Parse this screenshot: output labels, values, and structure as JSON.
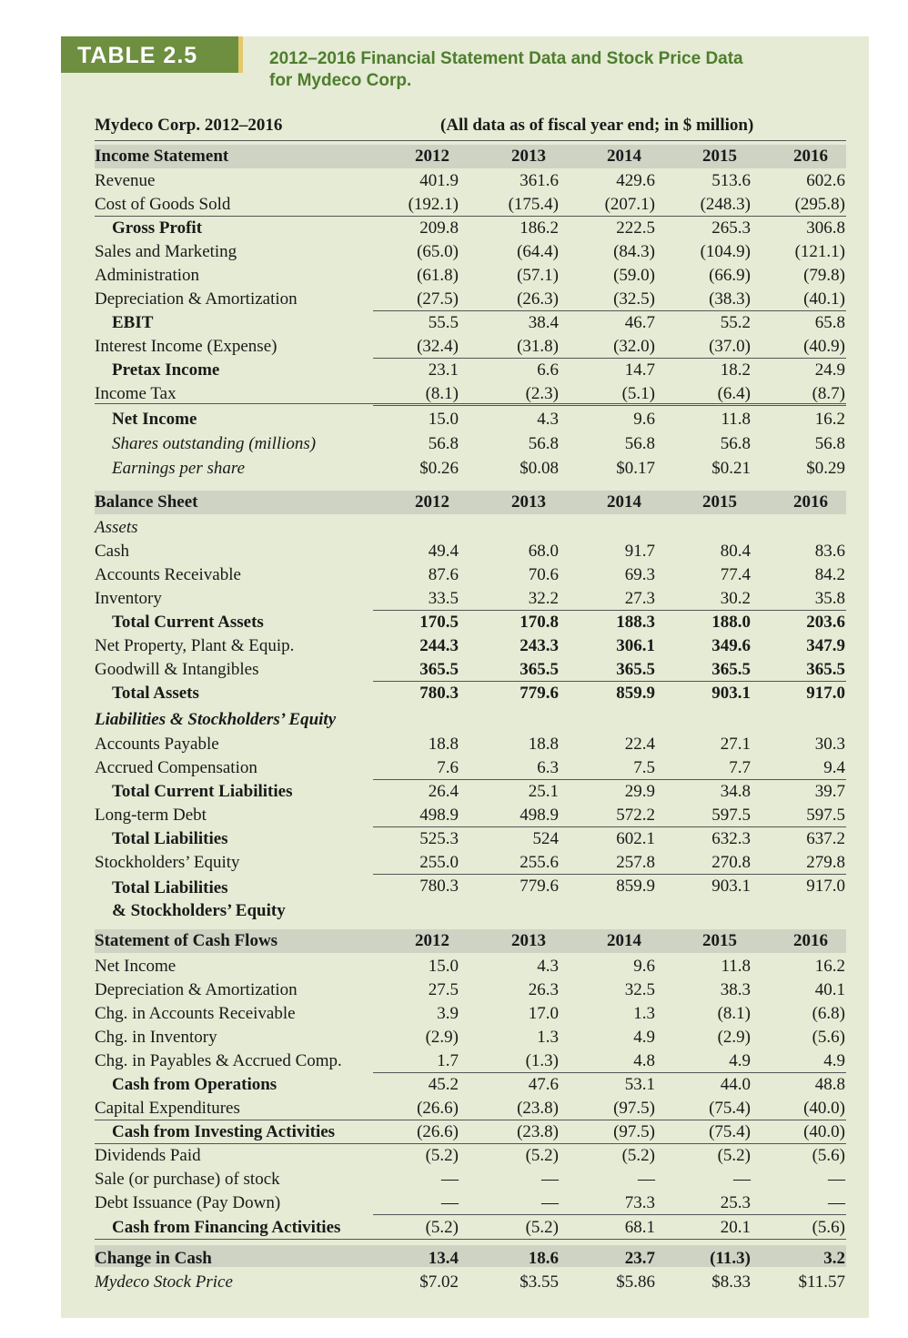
{
  "header": {
    "tag": "TABLE 2.5",
    "title_line1": "2012–2016 Financial Statement Data and Stock Price Data",
    "title_line2": "for Mydeco Corp."
  },
  "table_label": "Mydeco Corp. 2012–2016",
  "table_note": "(All data as of fiscal year end; in $ million)",
  "years": [
    "2012",
    "2013",
    "2014",
    "2015",
    "2016"
  ],
  "income": {
    "heading": "Income Statement",
    "rows": [
      {
        "label": "Revenue",
        "values": [
          "401.9",
          "361.6",
          "429.6",
          "513.6",
          "602.6"
        ]
      },
      {
        "label": "Cost of Goods Sold",
        "values": [
          "(192.1)",
          "(175.4)",
          "(207.1)",
          "(248.3)",
          "(295.8)"
        ]
      },
      {
        "label": "Gross Profit",
        "values": [
          "209.8",
          "186.2",
          "222.5",
          "265.3",
          "306.8"
        ]
      },
      {
        "label": "Sales and Marketing",
        "values": [
          "(65.0)",
          "(64.4)",
          "(84.3)",
          "(104.9)",
          "(121.1)"
        ]
      },
      {
        "label": "Administration",
        "values": [
          "(61.8)",
          "(57.1)",
          "(59.0)",
          "(66.9)",
          "(79.8)"
        ]
      },
      {
        "label": "Depreciation & Amortization",
        "values": [
          "(27.5)",
          "(26.3)",
          "(32.5)",
          "(38.3)",
          "(40.1)"
        ]
      },
      {
        "label": "EBIT",
        "values": [
          "55.5",
          "38.4",
          "46.7",
          "55.2",
          "65.8"
        ]
      },
      {
        "label": "Interest Income (Expense)",
        "values": [
          "(32.4)",
          "(31.8)",
          "(32.0)",
          "(37.0)",
          "(40.9)"
        ]
      },
      {
        "label": "Pretax Income",
        "values": [
          "23.1",
          "6.6",
          "14.7",
          "18.2",
          "24.9"
        ]
      },
      {
        "label": "Income Tax",
        "values": [
          "(8.1)",
          "(2.3)",
          "(5.1)",
          "(6.4)",
          "(8.7)"
        ]
      },
      {
        "label": "Net Income",
        "values": [
          "15.0",
          "4.3",
          "9.6",
          "11.8",
          "16.2"
        ]
      },
      {
        "label": "Shares outstanding (millions)",
        "values": [
          "56.8",
          "56.8",
          "56.8",
          "56.8",
          "56.8"
        ]
      },
      {
        "label": "Earnings per share",
        "values": [
          "$0.26",
          "$0.08",
          "$0.17",
          "$0.21",
          "$0.29"
        ]
      }
    ]
  },
  "balance": {
    "heading": "Balance Sheet",
    "assets_label": "Assets",
    "liab_label": "Liabilities & Stockholders’ Equity",
    "rows": [
      {
        "label": "Cash",
        "values": [
          "49.4",
          "68.0",
          "91.7",
          "80.4",
          "83.6"
        ]
      },
      {
        "label": "Accounts Receivable",
        "values": [
          "87.6",
          "70.6",
          "69.3",
          "77.4",
          "84.2"
        ]
      },
      {
        "label": "Inventory",
        "values": [
          "33.5",
          "32.2",
          "27.3",
          "30.2",
          "35.8"
        ]
      },
      {
        "label": "Total Current Assets",
        "values": [
          "170.5",
          "170.8",
          "188.3",
          "188.0",
          "203.6"
        ]
      },
      {
        "label": "Net Property, Plant & Equip.",
        "values": [
          "244.3",
          "243.3",
          "306.1",
          "349.6",
          "347.9"
        ]
      },
      {
        "label": "Goodwill & Intangibles",
        "values": [
          "365.5",
          "365.5",
          "365.5",
          "365.5",
          "365.5"
        ]
      },
      {
        "label": "Total Assets",
        "values": [
          "780.3",
          "779.6",
          "859.9",
          "903.1",
          "917.0"
        ]
      },
      {
        "label": "Accounts Payable",
        "values": [
          "18.8",
          "18.8",
          "22.4",
          "27.1",
          "30.3"
        ]
      },
      {
        "label": "Accrued Compensation",
        "values": [
          "7.6",
          "6.3",
          "7.5",
          "7.7",
          "9.4"
        ]
      },
      {
        "label": "Total Current Liabilities",
        "values": [
          "26.4",
          "25.1",
          "29.9",
          "34.8",
          "39.7"
        ]
      },
      {
        "label": "Long-term Debt",
        "values": [
          "498.9",
          "498.9",
          "572.2",
          "597.5",
          "597.5"
        ]
      },
      {
        "label": "Total Liabilities",
        "values": [
          "525.3",
          "524",
          "602.1",
          "632.3",
          "637.2"
        ]
      },
      {
        "label": "Stockholders’ Equity",
        "values": [
          "255.0",
          "255.6",
          "257.8",
          "270.8",
          "279.8"
        ]
      },
      {
        "label_line1": "Total Liabilities",
        "label_line2": "& Stockholders’ Equity",
        "values": [
          "780.3",
          "779.6",
          "859.9",
          "903.1",
          "917.0"
        ]
      }
    ]
  },
  "cashflow": {
    "heading": "Statement of Cash Flows",
    "rows": [
      {
        "label": "Net Income",
        "values": [
          "15.0",
          "4.3",
          "9.6",
          "11.8",
          "16.2"
        ]
      },
      {
        "label": "Depreciation & Amortization",
        "values": [
          "27.5",
          "26.3",
          "32.5",
          "38.3",
          "40.1"
        ]
      },
      {
        "label": "Chg. in Accounts Receivable",
        "values": [
          "3.9",
          "17.0",
          "1.3",
          "(8.1)",
          "(6.8)"
        ]
      },
      {
        "label": "Chg. in Inventory",
        "values": [
          "(2.9)",
          "1.3",
          "4.9",
          "(2.9)",
          "(5.6)"
        ]
      },
      {
        "label": "Chg. in Payables & Accrued Comp.",
        "values": [
          "1.7",
          "(1.3)",
          "4.8",
          "4.9",
          "4.9"
        ]
      },
      {
        "label": "Cash from Operations",
        "values": [
          "45.2",
          "47.6",
          "53.1",
          "44.0",
          "48.8"
        ]
      },
      {
        "label": "Capital Expenditures",
        "values": [
          "(26.6)",
          "(23.8)",
          "(97.5)",
          "(75.4)",
          "(40.0)"
        ]
      },
      {
        "label": "Cash from Investing Activities",
        "values": [
          "(26.6)",
          "(23.8)",
          "(97.5)",
          "(75.4)",
          "(40.0)"
        ]
      },
      {
        "label": "Dividends Paid",
        "values": [
          "(5.2)",
          "(5.2)",
          "(5.2)",
          "(5.2)",
          "(5.6)"
        ]
      },
      {
        "label": "Sale (or purchase) of stock",
        "values": [
          "—",
          "—",
          "—",
          "—",
          "—"
        ]
      },
      {
        "label": "Debt Issuance (Pay Down)",
        "values": [
          "—",
          "—",
          "73.3",
          "25.3",
          "—"
        ]
      },
      {
        "label": "Cash from Financing Activities",
        "values": [
          "(5.2)",
          "(5.2)",
          "68.1",
          "20.1",
          "(5.6)"
        ]
      },
      {
        "label": "Change in Cash",
        "values": [
          "13.4",
          "18.6",
          "23.7",
          "(11.3)",
          "3.2"
        ]
      },
      {
        "label": "Mydeco Stock Price",
        "values": [
          "$7.02",
          "$3.55",
          "$5.86",
          "$8.33",
          "$11.57"
        ]
      }
    ]
  }
}
